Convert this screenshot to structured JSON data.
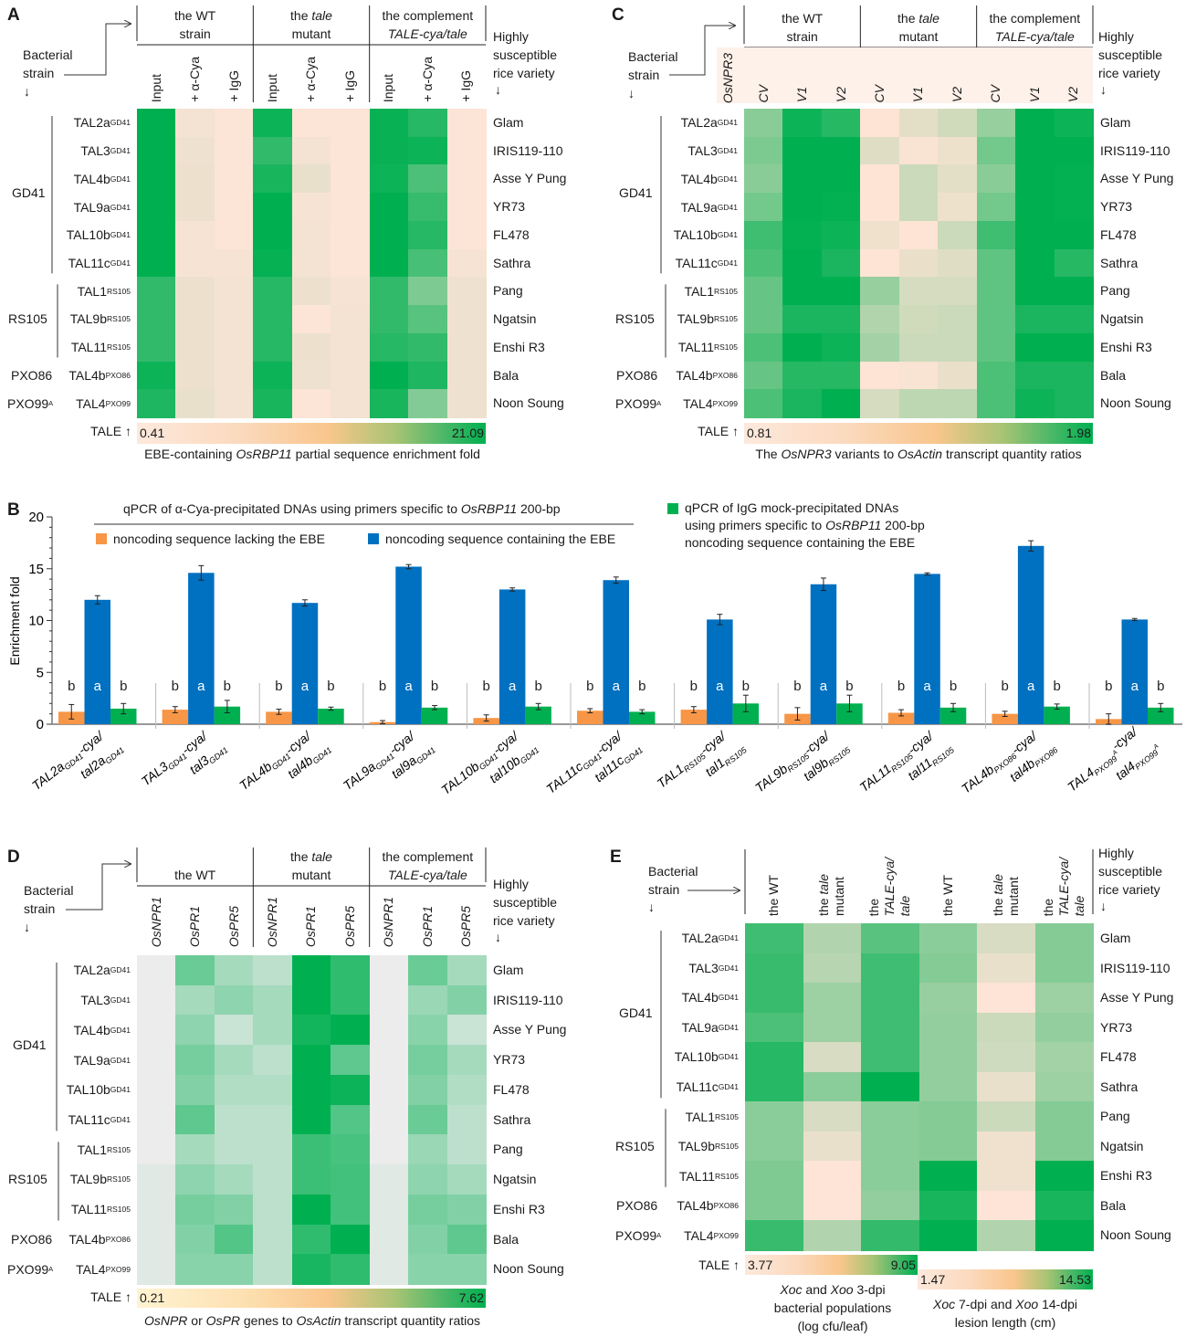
{
  "figure": {
    "strain_label": [
      "Bacterial",
      "strain"
    ],
    "down_arrow": "↓",
    "variety_label": [
      "Highly",
      "susceptible",
      "rice variety"
    ],
    "tale_label": "TALE ↑",
    "rows": [
      {
        "tal": "TAL2a",
        "tal_mut": "tal2a",
        "sub": "GD41",
        "variety": "Glam"
      },
      {
        "tal": "TAL3",
        "tal_mut": "tal3",
        "sub": "GD41",
        "variety": "IRIS119-110"
      },
      {
        "tal": "TAL4b",
        "tal_mut": "tal4b",
        "sub": "GD41",
        "variety": "Asse Y Pung"
      },
      {
        "tal": "TAL9a",
        "tal_mut": "tal9a",
        "sub": "GD41",
        "variety": "YR73"
      },
      {
        "tal": "TAL10b",
        "tal_mut": "tal10b",
        "sub": "GD41",
        "variety": "FL478"
      },
      {
        "tal": "TAL11c",
        "tal_mut": "tal11c",
        "sub": "GD41",
        "variety": "Sathra"
      },
      {
        "tal": "TAL1",
        "tal_mut": "tal1",
        "sub": "RS105",
        "variety": "Pang"
      },
      {
        "tal": "TAL9b",
        "tal_mut": "tal9b",
        "sub": "RS105",
        "variety": "Ngatsin"
      },
      {
        "tal": "TAL11",
        "tal_mut": "tal11",
        "sub": "RS105",
        "variety": "Enshi R3"
      },
      {
        "tal": "TAL4b",
        "tal_mut": "tal4b",
        "sub": "PXO86",
        "variety": "Bala"
      },
      {
        "tal": "TAL4",
        "tal_mut": "tal4",
        "sub": "PXO99",
        "sup": "A",
        "variety": "Noon Soung"
      }
    ],
    "groups": [
      {
        "name": "GD41",
        "first": 0,
        "last": 5,
        "bracket": true
      },
      {
        "name": "RS105",
        "first": 6,
        "last": 8,
        "bracket": true
      },
      {
        "name": "PXO86",
        "first": 9,
        "last": 9,
        "bracket": false
      },
      {
        "name": "PXO99",
        "sup": "A",
        "first": 10,
        "last": 10,
        "bracket": false
      }
    ]
  },
  "panel_A": {
    "letter": "A",
    "colors": {
      "low": "#fce4d6",
      "high": "#00b050"
    },
    "group_headers": [
      [
        [
          {
            "t": "the WT"
          }
        ],
        [
          {
            "t": "strain"
          }
        ]
      ],
      [
        [
          {
            "t": "the "
          },
          {
            "t": "tale",
            "i": true
          }
        ],
        [
          {
            "t": "mutant"
          }
        ]
      ],
      [
        [
          {
            "t": "the complement"
          }
        ],
        [
          {
            "t": "TALE-cya/tale",
            "i": true
          }
        ]
      ]
    ],
    "caption": [
      {
        "t": "EBE-containing "
      },
      {
        "t": "OsRBP11",
        "i": true
      },
      {
        "t": " partial sequence enrichment fold"
      }
    ],
    "chart_data": {
      "type": "heatmap",
      "columns": [
        "Input",
        "+ α-Cya",
        "+ IgG",
        "Input",
        "+ α-Cya",
        "+ IgG",
        "Input",
        "+ α-Cya",
        "+ IgG"
      ],
      "columns_italic": false,
      "scales": [
        {
          "min": 0.41,
          "max": 21.09,
          "columns": [
            0,
            1,
            2,
            3,
            4,
            5,
            6,
            7,
            8
          ]
        }
      ],
      "values": [
        [
          21.09,
          1.03,
          0.41,
          20.06,
          0.41,
          0.41,
          20.47,
          17.99,
          0.41
        ],
        [
          21.09,
          1.44,
          0.41,
          16.95,
          1.03,
          0.41,
          20.47,
          20.06,
          0.41
        ],
        [
          21.09,
          1.65,
          0.41,
          19.02,
          2.06,
          0.41,
          20.06,
          14.89,
          0.41
        ],
        [
          21.09,
          1.65,
          0.41,
          21.09,
          0.82,
          0.41,
          21.09,
          16.54,
          0.41
        ],
        [
          21.09,
          0.82,
          0.41,
          21.09,
          1.03,
          0.41,
          21.09,
          17.99,
          0.41
        ],
        [
          21.09,
          0.82,
          0.82,
          20.68,
          1.03,
          0.41,
          21.09,
          15.3,
          0.82
        ],
        [
          16.95,
          1.65,
          1.03,
          17.99,
          1.65,
          0.82,
          16.95,
          10.75,
          1.44
        ],
        [
          16.95,
          1.65,
          1.03,
          17.99,
          0.41,
          1.03,
          16.95,
          13.85,
          1.44
        ],
        [
          16.95,
          1.65,
          1.03,
          17.99,
          1.65,
          1.03,
          17.99,
          16.95,
          1.44
        ],
        [
          20.06,
          1.65,
          1.03,
          20.06,
          1.44,
          1.03,
          21.09,
          18.61,
          1.44
        ],
        [
          18.61,
          2.06,
          1.03,
          19.02,
          0.41,
          1.03,
          19.02,
          10.34,
          1.44
        ]
      ]
    }
  },
  "panel_B": {
    "letter": "B",
    "legend": {
      "title": [
        {
          "t": "qPCR of α-Cya-precipitated DNAs using primers specific to "
        },
        {
          "t": "OsRBP11",
          "i": true
        },
        {
          "t": " 200-bp"
        }
      ],
      "orange": "noncoding sequence lacking the EBE",
      "blue": "noncoding sequence containing the EBE",
      "green": [
        [
          {
            "t": "qPCR of IgG mock-precipitated DNAs"
          }
        ],
        [
          {
            "t": "using primers specific to "
          },
          {
            "t": "OsRBP11",
            "i": true
          },
          {
            "t": " 200-bp"
          }
        ],
        [
          {
            "t": "noncoding sequence containing the EBE"
          }
        ]
      ]
    },
    "chart_data": {
      "type": "bar",
      "ylabel": "Enrichment fold",
      "ylim": [
        0,
        20
      ],
      "yticks": [
        "0",
        "5",
        "10",
        "15",
        "20"
      ],
      "cya_suffix": "-cya/",
      "colors": {
        "orange": "#f79646",
        "blue": "#0070c0",
        "green": "#00b050"
      },
      "series": [
        {
          "name": "noncoding sequence lacking the EBE",
          "color": "orange",
          "values": [
            1.2,
            1.4,
            1.2,
            0.2,
            0.6,
            1.3,
            1.4,
            1.0,
            1.1,
            1.0,
            0.5
          ],
          "errors": [
            0.7,
            0.3,
            0.25,
            0.15,
            0.3,
            0.2,
            0.3,
            0.6,
            0.3,
            0.25,
            0.5
          ],
          "letters": [
            "b",
            "b",
            "b",
            "b",
            "b",
            "b",
            "b",
            "b",
            "b",
            "b",
            "b"
          ]
        },
        {
          "name": "noncoding sequence containing the EBE",
          "color": "blue",
          "values": [
            12.0,
            14.6,
            11.7,
            15.2,
            13.0,
            13.9,
            10.1,
            13.5,
            14.5,
            17.2,
            10.1
          ],
          "errors": [
            0.4,
            0.7,
            0.3,
            0.2,
            0.15,
            0.3,
            0.5,
            0.6,
            0.1,
            0.5,
            0.1
          ],
          "letters": [
            "a",
            "a",
            "a",
            "a",
            "a",
            "a",
            "a",
            "a",
            "a",
            "a",
            "a"
          ]
        },
        {
          "name": "qPCR of IgG mock-precipitated DNAs",
          "color": "green",
          "values": [
            1.5,
            1.7,
            1.5,
            1.6,
            1.7,
            1.2,
            2.0,
            2.0,
            1.6,
            1.7,
            1.6
          ],
          "errors": [
            0.5,
            0.6,
            0.15,
            0.2,
            0.3,
            0.2,
            0.8,
            0.8,
            0.4,
            0.25,
            0.4
          ],
          "letters": [
            "b",
            "b",
            "b",
            "b",
            "b",
            "b",
            "b",
            "b",
            "b",
            "b",
            "b"
          ]
        }
      ]
    }
  },
  "panel_C": {
    "letter": "C",
    "gene_label": "OsNPR3",
    "colors": {
      "low": "#fde4d4",
      "high": "#00b050",
      "header_bg": "#fdf1e9"
    },
    "group_headers": [
      [
        [
          {
            "t": "the WT"
          }
        ],
        [
          {
            "t": "strain"
          }
        ]
      ],
      [
        [
          {
            "t": "the "
          },
          {
            "t": "tale",
            "i": true
          }
        ],
        [
          {
            "t": "mutant"
          }
        ]
      ],
      [
        [
          {
            "t": "the complement"
          }
        ],
        [
          {
            "t": "TALE-cya/tale",
            "i": true
          }
        ]
      ]
    ],
    "caption": [
      {
        "t": "The "
      },
      {
        "t": "OsNPR3",
        "i": true
      },
      {
        "t": " variants to "
      },
      {
        "t": "OsActin",
        "i": true
      },
      {
        "t": " transcript quantity ratios"
      }
    ],
    "chart_data": {
      "type": "heatmap",
      "columns": [
        "CV",
        "V1",
        "V2",
        "CV",
        "V1",
        "V2",
        "CV",
        "V1",
        "V2"
      ],
      "columns_italic": true,
      "scales": [
        {
          "min": 0.81,
          "max": 1.98,
          "columns": [
            0,
            1,
            2,
            3,
            4,
            5,
            6,
            7,
            8
          ]
        }
      ],
      "values": [
        [
          1.34,
          1.92,
          1.8,
          0.81,
          0.93,
          1.02,
          1.28,
          1.98,
          1.92
        ],
        [
          1.4,
          1.98,
          1.98,
          0.95,
          0.83,
          0.88,
          1.45,
          1.98,
          1.98
        ],
        [
          1.34,
          1.98,
          1.98,
          0.81,
          1.04,
          0.93,
          1.34,
          1.98,
          1.96
        ],
        [
          1.45,
          1.98,
          1.96,
          0.81,
          1.04,
          0.88,
          1.45,
          1.98,
          1.96
        ],
        [
          1.69,
          1.96,
          1.92,
          0.87,
          0.81,
          1.04,
          1.69,
          1.98,
          1.98
        ],
        [
          1.63,
          1.98,
          1.86,
          0.81,
          0.9,
          0.95,
          1.54,
          1.98,
          1.8
        ],
        [
          1.51,
          1.98,
          1.98,
          1.28,
          0.99,
          0.99,
          1.54,
          1.98,
          1.98
        ],
        [
          1.51,
          1.86,
          1.86,
          1.16,
          1.02,
          1.04,
          1.54,
          1.86,
          1.86
        ],
        [
          1.63,
          1.98,
          1.92,
          1.22,
          1.04,
          1.04,
          1.54,
          1.98,
          1.98
        ],
        [
          1.51,
          1.8,
          1.8,
          0.81,
          0.83,
          0.9,
          1.63,
          1.86,
          1.86
        ],
        [
          1.63,
          1.86,
          1.98,
          0.99,
          1.1,
          1.1,
          1.63,
          1.92,
          1.86
        ]
      ]
    }
  },
  "panel_D": {
    "letter": "D",
    "colors": {
      "low": "#ececec",
      "high": "#00b050"
    },
    "group_headers": [
      [
        [
          {
            "t": "the WT"
          }
        ]
      ],
      [
        [
          {
            "t": "the "
          },
          {
            "t": "tale",
            "i": true
          }
        ],
        [
          {
            "t": "mutant"
          }
        ]
      ],
      [
        [
          {
            "t": "the complement"
          }
        ],
        [
          {
            "t": "TALE-cya/tale",
            "i": true
          }
        ]
      ]
    ],
    "caption": [
      {
        "t": "OsNPR",
        "i": true
      },
      {
        "t": " or "
      },
      {
        "t": "OsPR",
        "i": true
      },
      {
        "t": " genes to "
      },
      {
        "t": "OsActin",
        "i": true
      },
      {
        "t": " transcript quantity ratios"
      }
    ],
    "chart_data": {
      "type": "heatmap",
      "columns": [
        "OsNPR1",
        "OsPR1",
        "OsPR5",
        "OsNPR1",
        "OsPR1",
        "OsPR5",
        "OsNPR1",
        "OsPR1",
        "OsPR5"
      ],
      "columns_italic": true,
      "scales": [
        {
          "min": 0.21,
          "max": 7.62,
          "columns": [
            0,
            1,
            2,
            3,
            4,
            5,
            6,
            7,
            8
          ]
        }
      ],
      "values": [
        [
          0.21,
          4.29,
          2.43,
          1.69,
          7.62,
          6.14,
          0.21,
          4.29,
          2.43
        ],
        [
          0.21,
          2.43,
          3.17,
          2.43,
          7.62,
          6.14,
          0.21,
          2.8,
          3.54
        ],
        [
          0.21,
          3.17,
          1.32,
          2.43,
          7.03,
          7.62,
          0.21,
          3.32,
          1.32
        ],
        [
          0.21,
          3.92,
          2.43,
          1.69,
          7.62,
          4.66,
          0.21,
          3.92,
          2.43
        ],
        [
          0.21,
          3.54,
          2.06,
          2.06,
          7.62,
          7.25,
          0.21,
          3.54,
          2.06
        ],
        [
          0.21,
          4.66,
          1.69,
          1.69,
          7.62,
          5.03,
          0.21,
          4.29,
          1.69
        ],
        [
          0.21,
          2.43,
          1.69,
          1.69,
          5.77,
          5.4,
          0.21,
          2.8,
          1.69
        ],
        [
          0.58,
          3.17,
          2.43,
          1.69,
          5.77,
          5.55,
          0.58,
          3.17,
          2.43
        ],
        [
          0.58,
          3.92,
          3.54,
          1.69,
          7.62,
          5.55,
          0.58,
          3.92,
          3.54
        ],
        [
          0.58,
          3.54,
          5.03,
          1.69,
          6.14,
          7.62,
          0.58,
          3.54,
          4.66
        ],
        [
          0.58,
          3.32,
          3.32,
          1.69,
          6.88,
          6.14,
          0.58,
          3.32,
          3.32
        ]
      ]
    }
  },
  "panel_E": {
    "letter": "E",
    "colors": {
      "low": "#fde4d6",
      "high": "#00b050"
    },
    "columns": [
      [
        [
          {
            "t": "the WT"
          }
        ]
      ],
      [
        [
          {
            "t": "the "
          },
          {
            "t": "tale",
            "i": true
          }
        ],
        [
          {
            "t": "mutant"
          }
        ]
      ],
      [
        [
          {
            "t": "the"
          }
        ],
        [
          {
            "t": "TALE-cya/",
            "i": true
          }
        ],
        [
          {
            "t": "tale",
            "i": true
          }
        ]
      ],
      [
        [
          {
            "t": "the WT"
          }
        ]
      ],
      [
        [
          {
            "t": "the "
          },
          {
            "t": "tale",
            "i": true
          }
        ],
        [
          {
            "t": "mutant"
          }
        ]
      ],
      [
        [
          {
            "t": "the"
          }
        ],
        [
          {
            "t": "TALE-cya/",
            "i": true
          }
        ],
        [
          {
            "t": "tale",
            "i": true
          }
        ]
      ]
    ],
    "captions": [
      [
        [
          {
            "t": "Xoc",
            "i": true
          },
          {
            "t": " and "
          },
          {
            "t": "Xoo",
            "i": true
          },
          {
            "t": " 3-dpi"
          }
        ],
        [
          {
            "t": "bacterial populations"
          }
        ],
        [
          {
            "t": "(log cfu/leaf)"
          }
        ]
      ],
      [
        [
          {
            "t": "Xoc",
            "i": true
          },
          {
            "t": " 7-dpi  and "
          },
          {
            "t": "Xoo",
            "i": true
          },
          {
            "t": " 14-dpi"
          }
        ],
        [
          {
            "t": "lesion length (cm)"
          }
        ]
      ]
    ],
    "chart_data": {
      "type": "heatmap",
      "scales": [
        {
          "min": 3.77,
          "max": 9.05,
          "columns": [
            0,
            1,
            2
          ]
        },
        {
          "min": 1.47,
          "max": 14.53,
          "columns": [
            3,
            4,
            5
          ]
        }
      ],
      "values": [
        [
          7.73,
          5.35,
          7.2,
          7.35,
          3.43,
          7.74
        ],
        [
          7.89,
          5.25,
          7.73,
          7.74,
          2.51,
          7.74
        ],
        [
          7.89,
          5.78,
          7.73,
          6.69,
          1.47,
          6.43
        ],
        [
          7.47,
          5.78,
          7.73,
          6.96,
          4.08,
          6.96
        ],
        [
          8.26,
          4.56,
          7.73,
          6.96,
          3.82,
          6.04
        ],
        [
          8.26,
          6.15,
          9.05,
          6.96,
          2.51,
          6.43
        ],
        [
          6.15,
          4.56,
          6.15,
          7.74,
          4.08,
          7.74
        ],
        [
          6.15,
          4.19,
          6.15,
          7.74,
          2.12,
          7.74
        ],
        [
          6.41,
          3.77,
          6.15,
          14.53,
          2.12,
          14.53
        ],
        [
          6.41,
          3.77,
          5.99,
          13.22,
          1.47,
          13.22
        ],
        [
          7.89,
          5.35,
          7.99,
          14.53,
          5.39,
          14.53
        ]
      ]
    }
  }
}
